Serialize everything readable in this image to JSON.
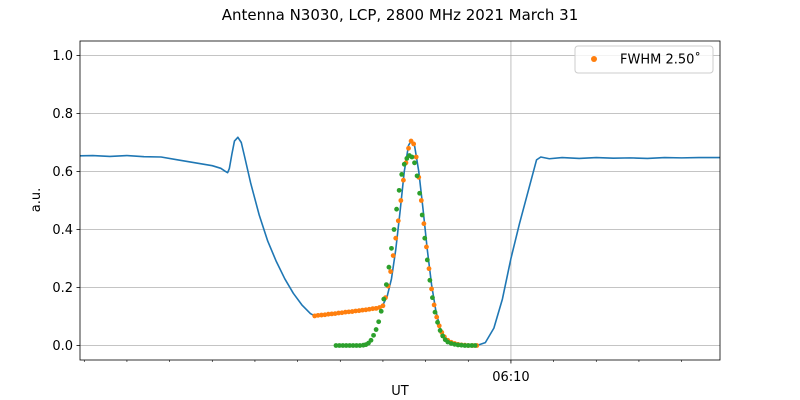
{
  "chart_data": {
    "type": "line",
    "title": "Antenna N3030, LCP, 2800 MHz 2021 March 31",
    "xlabel": "UT",
    "ylabel": "a.u.",
    "ylim": [
      -0.05,
      1.05
    ],
    "y_ticks": [
      0.0,
      0.2,
      0.4,
      0.6,
      0.8,
      1.0
    ],
    "y_tick_labels": [
      "0.0",
      "0.2",
      "0.4",
      "0.6",
      "0.8",
      "1.0"
    ],
    "x_range_min": [
      4.95,
      12.45
    ],
    "x_major_ticks": [
      {
        "t": 10.0,
        "label": "06:10"
      }
    ],
    "x_minor_ticks": [
      5.0,
      5.5,
      6.0,
      6.5,
      7.0,
      7.5,
      8.0,
      8.5,
      9.0,
      9.5,
      10.5,
      11.0,
      11.5,
      12.0
    ],
    "grid": true,
    "legend": {
      "position": "top-right",
      "entries": [
        {
          "label": "FWHM 2.50$^\\circ$",
          "display": "FWHM 2.50˚",
          "color": "#ff7f0e",
          "marker": "dot"
        }
      ]
    },
    "series": [
      {
        "kind": "line",
        "color": "#1f77b4",
        "points": [
          [
            4.95,
            0.654
          ],
          [
            5.1,
            0.655
          ],
          [
            5.3,
            0.652
          ],
          [
            5.5,
            0.655
          ],
          [
            5.7,
            0.651
          ],
          [
            5.9,
            0.65
          ],
          [
            6.1,
            0.64
          ],
          [
            6.3,
            0.63
          ],
          [
            6.5,
            0.62
          ],
          [
            6.6,
            0.611
          ],
          [
            6.65,
            0.601
          ],
          [
            6.68,
            0.596
          ],
          [
            6.7,
            0.61
          ],
          [
            6.73,
            0.66
          ],
          [
            6.76,
            0.705
          ],
          [
            6.8,
            0.718
          ],
          [
            6.84,
            0.7
          ],
          [
            6.88,
            0.65
          ],
          [
            6.95,
            0.56
          ],
          [
            7.05,
            0.45
          ],
          [
            7.15,
            0.36
          ],
          [
            7.25,
            0.29
          ],
          [
            7.35,
            0.23
          ],
          [
            7.45,
            0.18
          ],
          [
            7.55,
            0.14
          ],
          [
            7.65,
            0.11
          ],
          [
            7.7,
            0.102
          ],
          [
            7.8,
            0.105
          ],
          [
            7.9,
            0.108
          ],
          [
            8.0,
            0.112
          ],
          [
            8.1,
            0.116
          ],
          [
            8.2,
            0.12
          ],
          [
            8.3,
            0.124
          ],
          [
            8.35,
            0.127
          ],
          [
            8.45,
            0.13
          ],
          [
            8.5,
            0.14
          ],
          [
            8.55,
            0.17
          ],
          [
            8.6,
            0.23
          ],
          [
            8.65,
            0.33
          ],
          [
            8.7,
            0.46
          ],
          [
            8.75,
            0.6
          ],
          [
            8.8,
            0.69
          ],
          [
            8.83,
            0.705
          ],
          [
            8.87,
            0.69
          ],
          [
            8.92,
            0.6
          ],
          [
            8.97,
            0.47
          ],
          [
            9.02,
            0.33
          ],
          [
            9.07,
            0.21
          ],
          [
            9.12,
            0.12
          ],
          [
            9.17,
            0.06
          ],
          [
            9.22,
            0.03
          ],
          [
            9.3,
            0.01
          ],
          [
            9.4,
            0.003
          ],
          [
            9.5,
            0.0
          ],
          [
            9.6,
            0.0
          ],
          [
            9.7,
            0.01
          ],
          [
            9.8,
            0.06
          ],
          [
            9.9,
            0.16
          ],
          [
            10.0,
            0.3
          ],
          [
            10.1,
            0.42
          ],
          [
            10.2,
            0.53
          ],
          [
            10.3,
            0.64
          ],
          [
            10.35,
            0.65
          ],
          [
            10.45,
            0.644
          ],
          [
            10.6,
            0.648
          ],
          [
            10.8,
            0.645
          ],
          [
            11.0,
            0.648
          ],
          [
            11.2,
            0.646
          ],
          [
            11.4,
            0.647
          ],
          [
            11.6,
            0.645
          ],
          [
            11.8,
            0.648
          ],
          [
            12.0,
            0.647
          ],
          [
            12.2,
            0.648
          ],
          [
            12.45,
            0.648
          ]
        ]
      },
      {
        "kind": "scatter",
        "color": "#ff7f0e",
        "points": [
          [
            7.7,
            0.102
          ],
          [
            7.74,
            0.104
          ],
          [
            7.78,
            0.105
          ],
          [
            7.82,
            0.106
          ],
          [
            7.86,
            0.108
          ],
          [
            7.9,
            0.109
          ],
          [
            7.94,
            0.11
          ],
          [
            7.98,
            0.112
          ],
          [
            8.02,
            0.113
          ],
          [
            8.06,
            0.115
          ],
          [
            8.1,
            0.116
          ],
          [
            8.14,
            0.117
          ],
          [
            8.18,
            0.119
          ],
          [
            8.22,
            0.12
          ],
          [
            8.26,
            0.122
          ],
          [
            8.3,
            0.123
          ],
          [
            8.34,
            0.125
          ],
          [
            8.38,
            0.127
          ],
          [
            8.42,
            0.128
          ],
          [
            8.46,
            0.131
          ],
          [
            8.5,
            0.137
          ],
          [
            8.53,
            0.165
          ],
          [
            8.56,
            0.205
          ],
          [
            8.59,
            0.255
          ],
          [
            8.62,
            0.31
          ],
          [
            8.65,
            0.37
          ],
          [
            8.68,
            0.43
          ],
          [
            8.71,
            0.5
          ],
          [
            8.74,
            0.57
          ],
          [
            8.77,
            0.63
          ],
          [
            8.8,
            0.68
          ],
          [
            8.83,
            0.705
          ],
          [
            8.86,
            0.695
          ],
          [
            8.89,
            0.65
          ],
          [
            8.92,
            0.58
          ],
          [
            8.95,
            0.5
          ],
          [
            8.98,
            0.42
          ],
          [
            9.01,
            0.34
          ],
          [
            9.04,
            0.265
          ],
          [
            9.07,
            0.195
          ],
          [
            9.1,
            0.14
          ],
          [
            9.13,
            0.098
          ],
          [
            9.16,
            0.068
          ],
          [
            9.19,
            0.045
          ],
          [
            9.22,
            0.03
          ],
          [
            9.26,
            0.018
          ],
          [
            9.3,
            0.011
          ],
          [
            9.34,
            0.007
          ],
          [
            9.38,
            0.004
          ],
          [
            9.42,
            0.002
          ],
          [
            9.46,
            0.001
          ],
          [
            9.5,
            0.0
          ],
          [
            9.55,
            0.0
          ],
          [
            9.6,
            0.0
          ]
        ]
      },
      {
        "kind": "scatter",
        "color": "#2ca02c",
        "points": [
          [
            7.95,
            0.0
          ],
          [
            7.99,
            0.0
          ],
          [
            8.03,
            0.0
          ],
          [
            8.07,
            0.0
          ],
          [
            8.11,
            0.0
          ],
          [
            8.15,
            0.0
          ],
          [
            8.19,
            0.0
          ],
          [
            8.23,
            0.0
          ],
          [
            8.27,
            0.001
          ],
          [
            8.3,
            0.003
          ],
          [
            8.33,
            0.008
          ],
          [
            8.36,
            0.018
          ],
          [
            8.39,
            0.035
          ],
          [
            8.42,
            0.055
          ],
          [
            8.45,
            0.082
          ],
          [
            8.48,
            0.118
          ],
          [
            8.51,
            0.16
          ],
          [
            8.54,
            0.21
          ],
          [
            8.57,
            0.27
          ],
          [
            8.6,
            0.335
          ],
          [
            8.63,
            0.4
          ],
          [
            8.66,
            0.47
          ],
          [
            8.69,
            0.535
          ],
          [
            8.72,
            0.59
          ],
          [
            8.75,
            0.625
          ],
          [
            8.78,
            0.645
          ],
          [
            8.81,
            0.655
          ],
          [
            8.84,
            0.65
          ],
          [
            8.87,
            0.63
          ],
          [
            8.9,
            0.585
          ],
          [
            8.93,
            0.525
          ],
          [
            8.96,
            0.45
          ],
          [
            8.99,
            0.37
          ],
          [
            9.02,
            0.295
          ],
          [
            9.05,
            0.225
          ],
          [
            9.08,
            0.165
          ],
          [
            9.11,
            0.115
          ],
          [
            9.14,
            0.08
          ],
          [
            9.17,
            0.052
          ],
          [
            9.2,
            0.033
          ],
          [
            9.23,
            0.02
          ],
          [
            9.26,
            0.012
          ],
          [
            9.3,
            0.007
          ],
          [
            9.34,
            0.004
          ],
          [
            9.38,
            0.002
          ],
          [
            9.42,
            0.001
          ],
          [
            9.46,
            0.0
          ],
          [
            9.5,
            0.0
          ],
          [
            9.54,
            0.0
          ],
          [
            9.58,
            0.0
          ]
        ]
      }
    ]
  }
}
